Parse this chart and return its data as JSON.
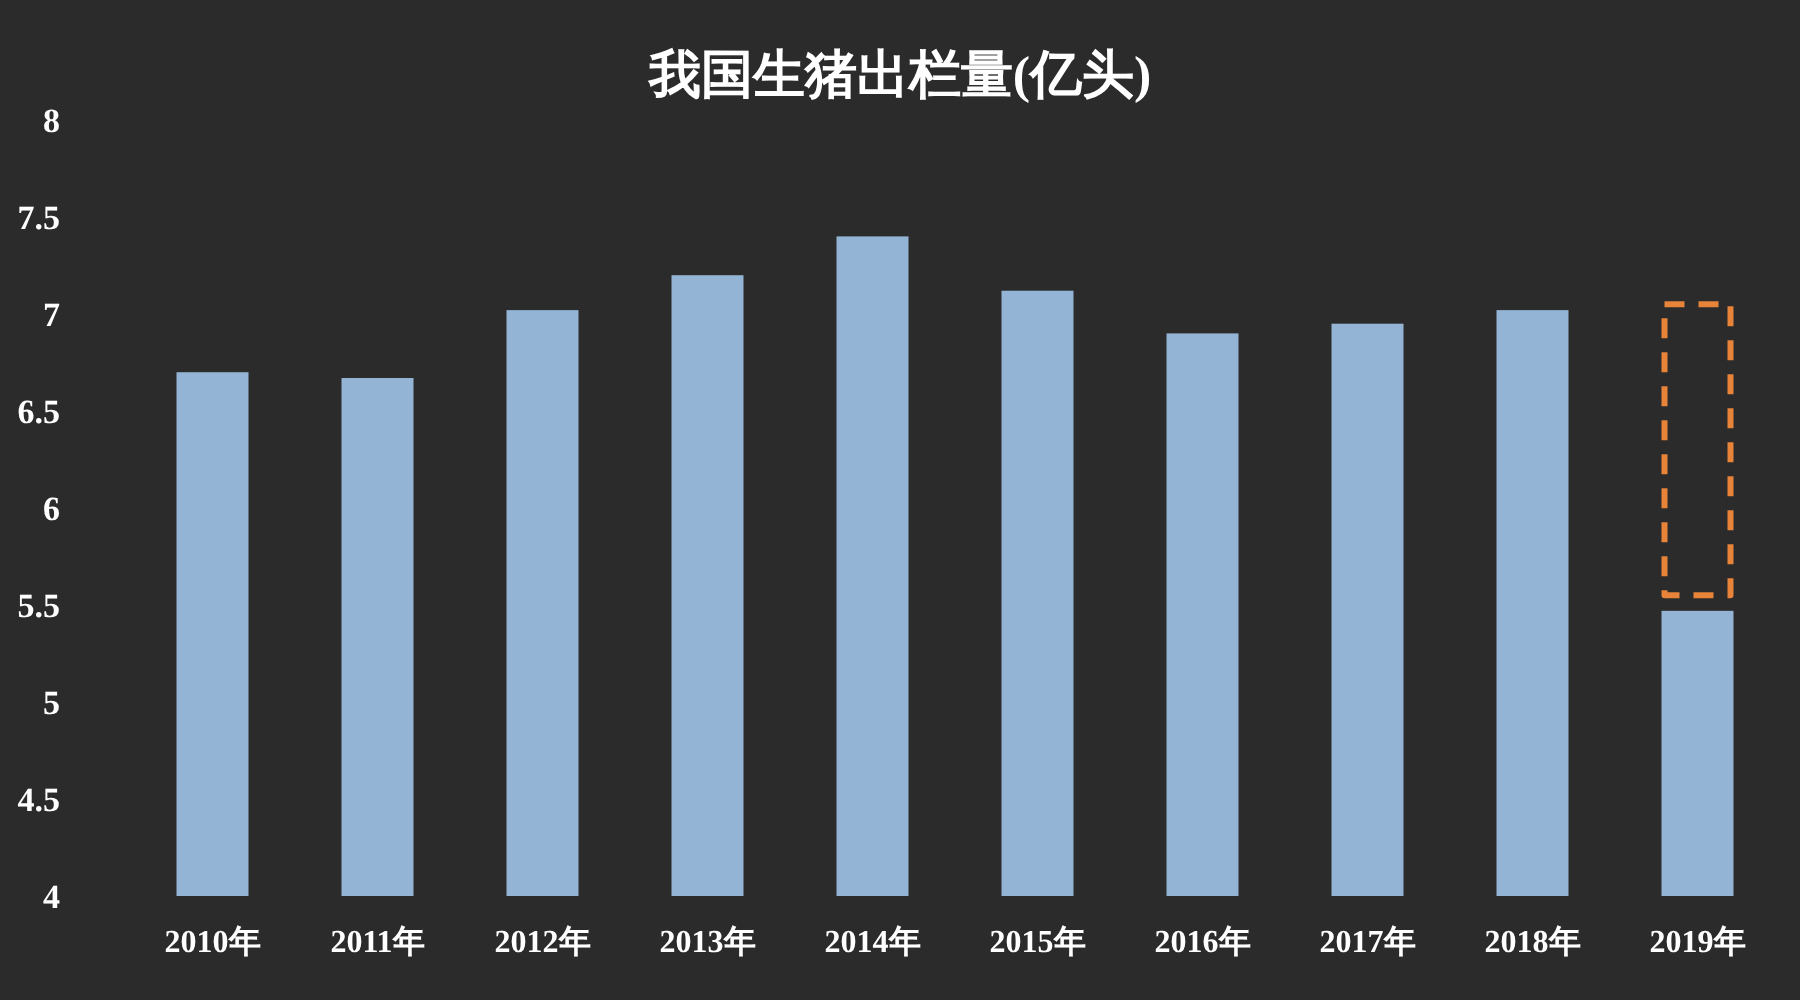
{
  "chart_data": {
    "type": "bar",
    "title": "我国生猪出栏量(亿头)",
    "categories": [
      "2010年",
      "2011年",
      "2012年",
      "2013年",
      "2014年",
      "2015年",
      "2016年",
      "2017年",
      "2018年",
      "2019年"
    ],
    "series": [
      {
        "color": "#93b4d4",
        "values": [
          6.7,
          6.67,
          7.02,
          7.2,
          7.4,
          7.12,
          6.9,
          6.95,
          7.02,
          5.47
        ]
      },
      {
        "color": "#e8833a",
        "line_style": "dashed",
        "base": [
          null,
          null,
          null,
          null,
          null,
          null,
          null,
          null,
          null,
          5.55
        ],
        "values": [
          null,
          null,
          null,
          null,
          null,
          null,
          null,
          null,
          null,
          1.5
        ]
      }
    ],
    "ylim": [
      4,
      8
    ],
    "yticks": [
      4,
      4.5,
      5,
      5.5,
      6,
      6.5,
      7,
      7.5,
      8
    ]
  }
}
